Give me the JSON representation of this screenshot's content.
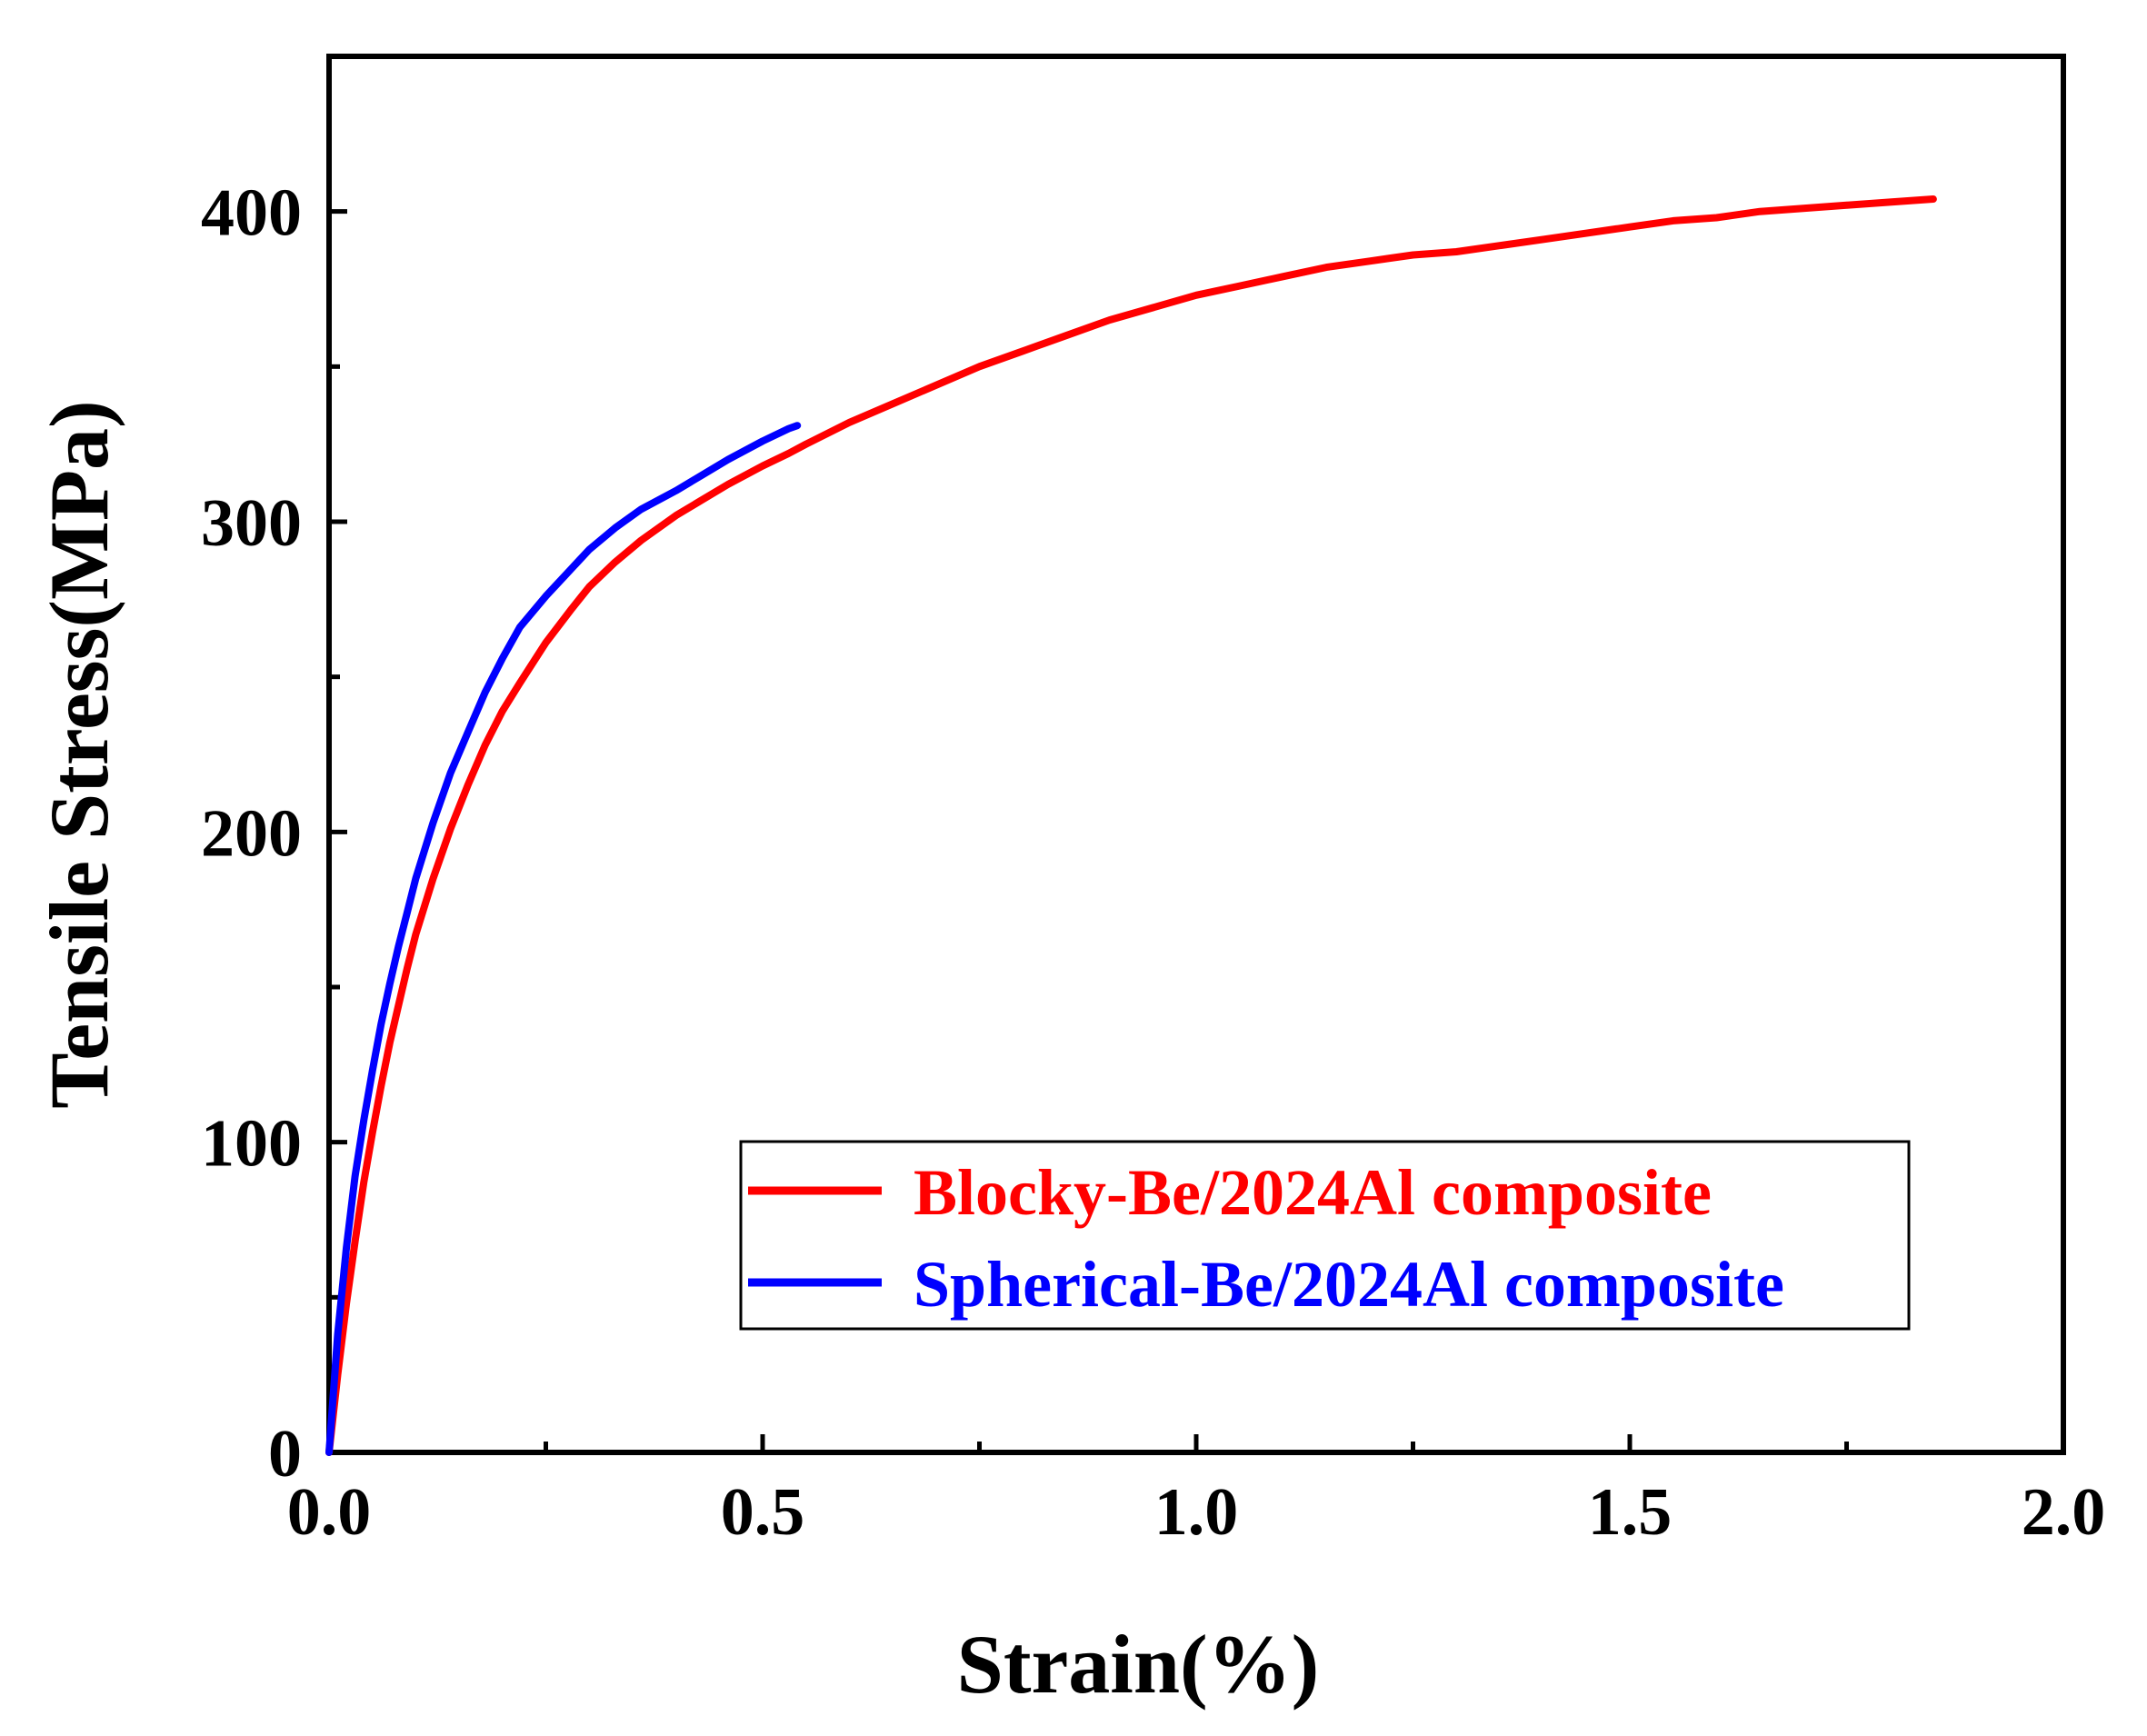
{
  "chart_data": {
    "type": "line",
    "title": "",
    "xlabel": "Strain(%)",
    "ylabel": "Tensile Stress(MPa)",
    "xlim": [
      0,
      2.0
    ],
    "ylim": [
      0,
      450
    ],
    "x_ticks": [
      0.0,
      0.5,
      1.0,
      1.5,
      2.0
    ],
    "x_tick_labels": [
      "0.0",
      "0.5",
      "1.0",
      "1.5",
      "2.0"
    ],
    "x_minor_ticks": [
      0.25,
      0.75,
      1.25,
      1.75
    ],
    "y_ticks": [
      0,
      100,
      200,
      300,
      400
    ],
    "y_tick_labels": [
      "0",
      "100",
      "200",
      "300",
      "400"
    ],
    "y_minor_ticks": [
      50,
      150,
      250,
      350
    ],
    "grid": false,
    "legend_position": "lower-right",
    "series": [
      {
        "name": "Blocky-Be/2024Al composite",
        "color": "#ff0000",
        "x": [
          0.0,
          0.01,
          0.02,
          0.03,
          0.04,
          0.05,
          0.06,
          0.07,
          0.08,
          0.09,
          0.1,
          0.12,
          0.14,
          0.16,
          0.18,
          0.2,
          0.22,
          0.25,
          0.28,
          0.3,
          0.33,
          0.36,
          0.4,
          0.43,
          0.46,
          0.5,
          0.53,
          0.55,
          0.6,
          0.65,
          0.7,
          0.75,
          0.8,
          0.85,
          0.9,
          0.95,
          1.0,
          1.05,
          1.1,
          1.15,
          1.2,
          1.25,
          1.3,
          1.35,
          1.4,
          1.45,
          1.5,
          1.55,
          1.6,
          1.65,
          1.7,
          1.75,
          1.8,
          1.85
        ],
        "y": [
          0,
          25,
          48,
          68,
          87,
          103,
          118,
          132,
          144,
          156,
          167,
          185,
          201,
          215,
          228,
          239,
          248,
          261,
          272,
          279,
          287,
          294,
          302,
          307,
          312,
          318,
          322,
          325,
          332,
          338,
          344,
          350,
          355,
          360,
          365,
          369,
          373,
          376,
          379,
          382,
          384,
          386,
          387,
          389,
          391,
          393,
          395,
          397,
          398,
          400,
          401,
          402,
          403,
          404
        ]
      },
      {
        "name": "Spherical-Be/2024Al composite",
        "color": "#0000ff",
        "x": [
          0.0,
          0.01,
          0.02,
          0.03,
          0.04,
          0.05,
          0.06,
          0.07,
          0.08,
          0.09,
          0.1,
          0.12,
          0.14,
          0.16,
          0.18,
          0.2,
          0.22,
          0.25,
          0.28,
          0.3,
          0.33,
          0.36,
          0.4,
          0.43,
          0.46,
          0.5,
          0.53,
          0.54
        ],
        "y": [
          0,
          38,
          66,
          89,
          107,
          123,
          138,
          151,
          163,
          174,
          185,
          203,
          219,
          232,
          245,
          256,
          266,
          276,
          285,
          291,
          298,
          304,
          310,
          315,
          320,
          326,
          330,
          331
        ]
      }
    ]
  }
}
